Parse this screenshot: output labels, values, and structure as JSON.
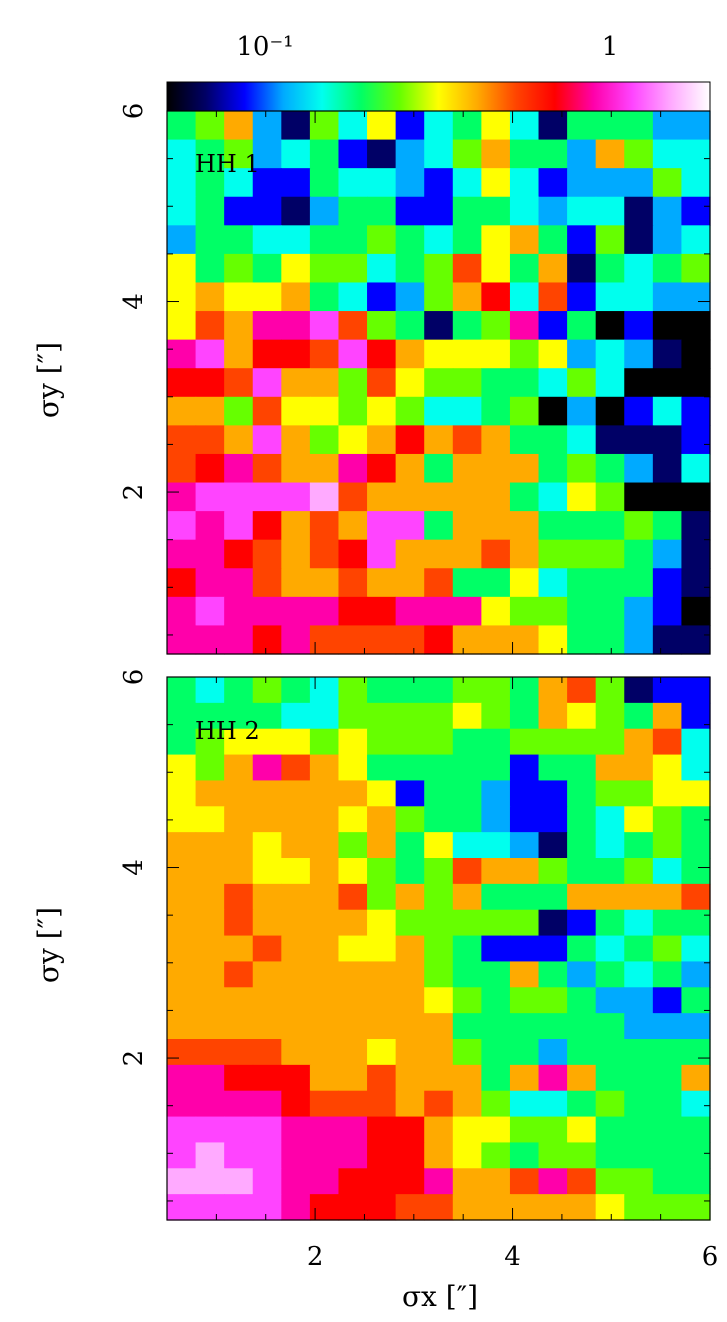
{
  "chart_data": {
    "type": "heatmap",
    "colorbar": {
      "scale": "log",
      "tick_labels": [
        "10⁻¹",
        "1"
      ],
      "colormap": [
        "#000000",
        "#000066",
        "#0000ff",
        "#00aaff",
        "#00ffee",
        "#00ff66",
        "#66ff00",
        "#ffff00",
        "#ffaa00",
        "#ff4400",
        "#ff0000",
        "#ff00aa",
        "#ff44ff",
        "#ffaaff",
        "#ffffff"
      ]
    },
    "xlabel": "σx [″]",
    "ylabel": "σy [″]",
    "x_ticks": [
      "2",
      "4",
      "6"
    ],
    "y_ticks": [
      "2",
      "4",
      "6"
    ],
    "xlim": [
      0.5,
      6
    ],
    "ylim": [
      0.3,
      6
    ],
    "panels": [
      {
        "name": "HH 1",
        "rows": [
          [
            5,
            6,
            8,
            3,
            1,
            6,
            4,
            7,
            2,
            4,
            5,
            7,
            4,
            1,
            5,
            5,
            5,
            3,
            3
          ],
          [
            4,
            5,
            6,
            3,
            4,
            5,
            2,
            1,
            3,
            4,
            6,
            8,
            5,
            5,
            3,
            8,
            6,
            4,
            4
          ],
          [
            4,
            5,
            4,
            2,
            2,
            5,
            4,
            4,
            3,
            2,
            4,
            7,
            4,
            2,
            3,
            3,
            3,
            6,
            4
          ],
          [
            4,
            5,
            2,
            2,
            1,
            3,
            5,
            5,
            2,
            2,
            5,
            5,
            4,
            3,
            4,
            4,
            1,
            3,
            2
          ],
          [
            3,
            5,
            5,
            4,
            4,
            5,
            5,
            6,
            5,
            4,
            5,
            7,
            8,
            5,
            2,
            6,
            1,
            3,
            4
          ],
          [
            7,
            5,
            6,
            5,
            7,
            6,
            6,
            4,
            5,
            6,
            9,
            7,
            5,
            8,
            1,
            5,
            4,
            5,
            6
          ],
          [
            7,
            8,
            7,
            7,
            8,
            5,
            4,
            2,
            3,
            6,
            8,
            10,
            4,
            9,
            2,
            4,
            4,
            3,
            3
          ],
          [
            7,
            9,
            8,
            11,
            11,
            12,
            9,
            6,
            5,
            1,
            5,
            6,
            11,
            2,
            5,
            0,
            2,
            0,
            0
          ],
          [
            11,
            12,
            8,
            10,
            10,
            9,
            12,
            10,
            8,
            7,
            7,
            7,
            6,
            7,
            3,
            4,
            3,
            1,
            0
          ],
          [
            10,
            10,
            9,
            12,
            8,
            8,
            6,
            9,
            7,
            6,
            6,
            5,
            5,
            4,
            6,
            4,
            0,
            0,
            0
          ],
          [
            8,
            8,
            6,
            9,
            7,
            7,
            6,
            7,
            6,
            4,
            4,
            5,
            6,
            0,
            3,
            0,
            2,
            4,
            2
          ],
          [
            9,
            9,
            8,
            12,
            8,
            6,
            7,
            8,
            10,
            8,
            9,
            8,
            5,
            5,
            4,
            1,
            1,
            1,
            2
          ],
          [
            9,
            10,
            11,
            9,
            8,
            8,
            11,
            10,
            8,
            5,
            8,
            8,
            8,
            5,
            6,
            5,
            3,
            1,
            4
          ],
          [
            11,
            12,
            12,
            12,
            12,
            13,
            9,
            8,
            8,
            8,
            8,
            8,
            5,
            4,
            7,
            6,
            0,
            0,
            0
          ],
          [
            12,
            11,
            12,
            10,
            8,
            9,
            8,
            12,
            12,
            5,
            8,
            8,
            8,
            5,
            5,
            5,
            6,
            5,
            1
          ],
          [
            11,
            11,
            10,
            9,
            8,
            9,
            10,
            12,
            8,
            8,
            8,
            9,
            8,
            6,
            6,
            6,
            5,
            3,
            1
          ],
          [
            10,
            11,
            11,
            9,
            8,
            8,
            9,
            8,
            8,
            9,
            5,
            5,
            7,
            4,
            5,
            5,
            5,
            2,
            1
          ],
          [
            11,
            12,
            11,
            11,
            11,
            11,
            10,
            10,
            11,
            11,
            11,
            7,
            6,
            6,
            5,
            5,
            3,
            2,
            0
          ],
          [
            11,
            11,
            11,
            10,
            11,
            9,
            9,
            9,
            9,
            10,
            8,
            8,
            8,
            7,
            5,
            5,
            3,
            1,
            1
          ]
        ]
      },
      {
        "name": "HH 2",
        "rows": [
          [
            5,
            4,
            5,
            6,
            5,
            4,
            6,
            5,
            5,
            5,
            6,
            6,
            5,
            8,
            9,
            6,
            1,
            2,
            2
          ],
          [
            5,
            5,
            5,
            5,
            4,
            4,
            6,
            6,
            6,
            6,
            7,
            6,
            5,
            8,
            7,
            6,
            5,
            8,
            2
          ],
          [
            5,
            6,
            7,
            7,
            7,
            6,
            7,
            6,
            6,
            6,
            5,
            5,
            6,
            6,
            6,
            6,
            8,
            9,
            4
          ],
          [
            7,
            6,
            8,
            11,
            9,
            8,
            7,
            5,
            5,
            5,
            5,
            5,
            2,
            5,
            5,
            8,
            8,
            7,
            4
          ],
          [
            7,
            8,
            8,
            8,
            8,
            8,
            8,
            7,
            2,
            5,
            5,
            3,
            2,
            2,
            5,
            6,
            6,
            7,
            7
          ],
          [
            7,
            7,
            8,
            8,
            8,
            8,
            7,
            8,
            6,
            5,
            5,
            3,
            2,
            2,
            5,
            4,
            7,
            6,
            5
          ],
          [
            8,
            8,
            8,
            7,
            8,
            8,
            6,
            8,
            5,
            7,
            4,
            4,
            3,
            1,
            5,
            4,
            5,
            6,
            5
          ],
          [
            8,
            8,
            8,
            7,
            7,
            8,
            7,
            6,
            5,
            6,
            9,
            8,
            8,
            6,
            5,
            5,
            6,
            4,
            5
          ],
          [
            8,
            8,
            9,
            8,
            8,
            8,
            9,
            6,
            8,
            6,
            8,
            5,
            5,
            5,
            8,
            8,
            8,
            8,
            9
          ],
          [
            8,
            8,
            9,
            8,
            8,
            8,
            8,
            7,
            6,
            6,
            6,
            6,
            6,
            1,
            2,
            5,
            4,
            5,
            5
          ],
          [
            8,
            8,
            8,
            9,
            8,
            8,
            7,
            7,
            8,
            6,
            5,
            2,
            2,
            2,
            5,
            4,
            5,
            6,
            4
          ],
          [
            8,
            8,
            9,
            8,
            8,
            8,
            8,
            8,
            8,
            6,
            5,
            5,
            8,
            5,
            3,
            5,
            4,
            5,
            3
          ],
          [
            8,
            8,
            8,
            8,
            8,
            8,
            8,
            8,
            8,
            7,
            6,
            5,
            6,
            6,
            5,
            3,
            3,
            2,
            5
          ],
          [
            8,
            8,
            8,
            8,
            8,
            8,
            8,
            8,
            8,
            8,
            5,
            5,
            5,
            5,
            5,
            5,
            3,
            3,
            3
          ],
          [
            9,
            9,
            9,
            9,
            8,
            8,
            8,
            7,
            8,
            8,
            6,
            5,
            5,
            3,
            5,
            5,
            5,
            5,
            5
          ],
          [
            11,
            11,
            10,
            10,
            10,
            8,
            8,
            9,
            8,
            8,
            8,
            5,
            8,
            11,
            8,
            5,
            5,
            5,
            8
          ],
          [
            11,
            11,
            11,
            11,
            10,
            9,
            9,
            9,
            8,
            9,
            8,
            6,
            4,
            4,
            5,
            6,
            5,
            5,
            4
          ],
          [
            12,
            12,
            12,
            12,
            11,
            11,
            11,
            10,
            10,
            8,
            7,
            7,
            6,
            6,
            7,
            5,
            5,
            5,
            5
          ],
          [
            12,
            13,
            12,
            12,
            11,
            11,
            11,
            10,
            10,
            8,
            7,
            6,
            5,
            6,
            6,
            5,
            5,
            5,
            5
          ],
          [
            13,
            13,
            13,
            12,
            11,
            11,
            10,
            10,
            10,
            11,
            8,
            8,
            9,
            11,
            9,
            6,
            6,
            5,
            5
          ],
          [
            12,
            12,
            12,
            12,
            11,
            10,
            10,
            10,
            9,
            9,
            8,
            8,
            8,
            8,
            8,
            7,
            6,
            6,
            6
          ]
        ]
      }
    ]
  }
}
